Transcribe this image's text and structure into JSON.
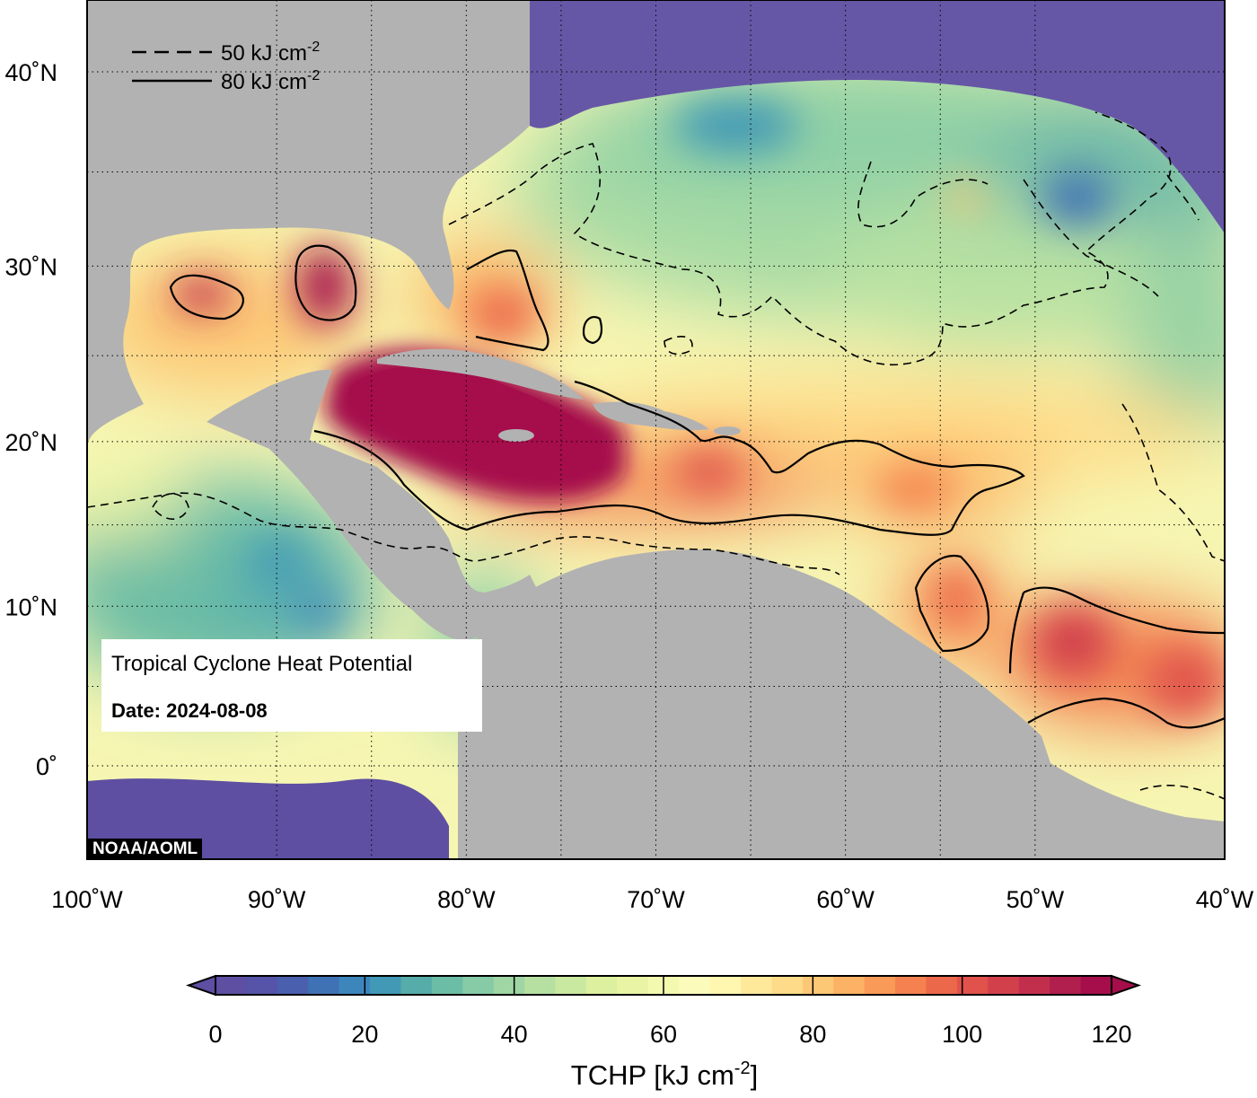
{
  "map": {
    "title": "Tropical Cyclone Heat Potential",
    "date_label": "Date: 2024-08-08",
    "credit": "NOAA/AOML",
    "lat_ticks": [
      {
        "value": 40,
        "label": "40˚N"
      },
      {
        "value": 30,
        "label": "30˚N"
      },
      {
        "value": 20,
        "label": "20˚N"
      },
      {
        "value": 10,
        "label": "10˚N"
      },
      {
        "value": 0,
        "label": "0˚"
      }
    ],
    "lon_ticks": [
      {
        "value": -100,
        "label": "100˚W"
      },
      {
        "value": -90,
        "label": "90˚W"
      },
      {
        "value": -80,
        "label": "80˚W"
      },
      {
        "value": -70,
        "label": "70˚W"
      },
      {
        "value": -60,
        "label": "60˚W"
      },
      {
        "value": -50,
        "label": "50˚W"
      },
      {
        "value": -40,
        "label": "40˚W"
      }
    ],
    "extent": {
      "lon": [
        -100,
        -40
      ],
      "lat": [
        -5,
        45
      ]
    },
    "contour_legend": [
      {
        "style": "dashed",
        "label": "50 kJ cm",
        "sup": "-2",
        "value": 50
      },
      {
        "style": "solid",
        "label": "80 kJ cm",
        "sup": "-2",
        "value": 80
      }
    ],
    "colors": {
      "land": "#b2b2b2",
      "deep_ocean": "#6657a6",
      "hot": "#a50e4b"
    }
  },
  "colorbar": {
    "title": "TCHP [kJ cm",
    "title_sup": "-2",
    "title_end": "]",
    "range": [
      0,
      120
    ],
    "ticks": [
      {
        "value": 0,
        "label": "0"
      },
      {
        "value": 20,
        "label": "20"
      },
      {
        "value": 40,
        "label": "40"
      },
      {
        "value": 60,
        "label": "60"
      },
      {
        "value": 80,
        "label": "80"
      },
      {
        "value": 100,
        "label": "100"
      },
      {
        "value": 120,
        "label": "120"
      }
    ],
    "colors": [
      "#5e4fa2",
      "#5554a8",
      "#4a5fae",
      "#3f72b4",
      "#3c86bc",
      "#4299b6",
      "#56aca8",
      "#6cbda5",
      "#86cba6",
      "#9fd6a4",
      "#b6e0a2",
      "#cae9a0",
      "#dcf09f",
      "#e9f5a4",
      "#f4f9b0",
      "#fbfbbc",
      "#fff6b0",
      "#fee99b",
      "#fedb88",
      "#fdc876",
      "#fcb264",
      "#f99a58",
      "#f4814f",
      "#ec684b",
      "#e0524b",
      "#d2404c",
      "#c22f4d",
      "#b01f4d",
      "#a50e4b"
    ]
  }
}
